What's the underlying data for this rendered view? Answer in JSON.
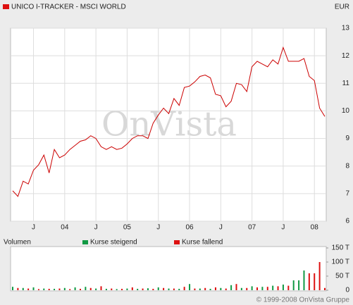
{
  "watermark": "OnVista",
  "copyright": "© 1999-2008 OnVista Gruppe",
  "chart_data": [
    {
      "type": "line",
      "currency": "EUR",
      "grid": true,
      "categories": [
        null,
        null,
        null,
        null,
        "J",
        null,
        null,
        null,
        null,
        null,
        "04",
        null,
        null,
        null,
        null,
        null,
        "J",
        null,
        null,
        null,
        null,
        null,
        "05",
        null,
        null,
        null,
        null,
        null,
        "J",
        null,
        null,
        null,
        null,
        null,
        "06",
        null,
        null,
        null,
        null,
        null,
        "J",
        null,
        null,
        null,
        null,
        null,
        "07",
        null,
        null,
        null,
        null,
        null,
        "J",
        null,
        null,
        null,
        null,
        null,
        "08",
        null,
        null
      ],
      "series": [
        {
          "name": "UNICO I-TRACKER - MSCI WORLD",
          "color": "#cc0000",
          "values": [
            7.1,
            6.9,
            7.45,
            7.35,
            7.85,
            8.05,
            8.4,
            7.75,
            8.6,
            8.3,
            8.4,
            8.6,
            8.75,
            8.9,
            8.95,
            9.1,
            9.0,
            8.7,
            8.6,
            8.7,
            8.6,
            8.65,
            8.8,
            9.0,
            9.1,
            9.1,
            9.0,
            9.55,
            9.85,
            10.1,
            9.9,
            10.45,
            10.2,
            10.85,
            10.9,
            11.05,
            11.25,
            11.3,
            11.2,
            10.6,
            10.55,
            10.15,
            10.35,
            11.0,
            10.95,
            10.7,
            11.6,
            11.8,
            11.7,
            11.6,
            11.85,
            11.7,
            12.3,
            11.8,
            11.8,
            11.8,
            11.9,
            11.25,
            11.1,
            10.1,
            9.8
          ]
        }
      ],
      "ylim": [
        6,
        13
      ],
      "yticks": [
        6,
        7,
        8,
        9,
        10,
        11,
        12,
        13
      ]
    },
    {
      "type": "bar",
      "title": "Volumen",
      "series": [
        {
          "name": "Kurse steigend",
          "color": "#119944",
          "values": [
            12,
            null,
            8,
            null,
            10,
            null,
            6,
            null,
            5,
            null,
            8,
            null,
            10,
            null,
            12,
            null,
            6,
            null,
            5,
            null,
            4,
            null,
            6,
            null,
            5,
            null,
            7,
            null,
            10,
            null,
            6,
            null,
            5,
            null,
            22,
            null,
            6,
            null,
            5,
            null,
            8,
            null,
            18,
            null,
            8,
            null,
            14,
            null,
            12,
            null,
            16,
            null,
            20,
            null,
            35,
            35,
            70,
            null,
            null,
            null,
            null
          ]
        },
        {
          "name": "Kurse fallend",
          "color": "#dd1111",
          "values": [
            null,
            8,
            null,
            6,
            null,
            4,
            null,
            5,
            null,
            6,
            null,
            4,
            null,
            5,
            null,
            8,
            null,
            14,
            null,
            6,
            null,
            5,
            null,
            10,
            null,
            6,
            null,
            5,
            null,
            8,
            null,
            6,
            null,
            12,
            null,
            6,
            null,
            8,
            null,
            10,
            null,
            6,
            null,
            22,
            null,
            8,
            null,
            10,
            null,
            12,
            null,
            14,
            null,
            16,
            null,
            null,
            null,
            60,
            60,
            100,
            8
          ]
        }
      ],
      "ylim": [
        0,
        150
      ],
      "yticks": [
        0,
        {
          "value": 50,
          "label": "50 T"
        },
        {
          "value": 100,
          "label": "100 T"
        },
        {
          "value": 150,
          "label": "150 T"
        }
      ]
    }
  ]
}
